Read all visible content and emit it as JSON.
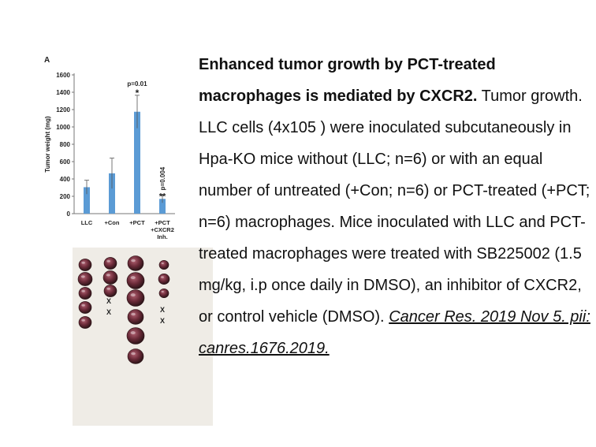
{
  "chart_data": {
    "type": "bar",
    "panel_label": "A",
    "ylabel": "Tumor weight (mg)",
    "ylim": [
      0,
      1600
    ],
    "yticks": [
      0,
      200,
      400,
      600,
      800,
      1000,
      1200,
      1400,
      1600
    ],
    "categories": [
      "LLC",
      "+Con",
      "+PCT",
      "+PCT +CXCR2 Inh."
    ],
    "category_lines": [
      [
        "LLC"
      ],
      [
        "+Con"
      ],
      [
        "+PCT"
      ],
      [
        "+PCT",
        "+CXCR2",
        "Inh."
      ]
    ],
    "values": [
      305,
      465,
      1175,
      170
    ],
    "errors": [
      80,
      175,
      190,
      45
    ],
    "annotations": [
      {
        "category_index": 2,
        "p_text": "p=0.01",
        "mark": "*"
      },
      {
        "category_index": 3,
        "p_text": "p=0.004",
        "mark": "**"
      }
    ],
    "bar_color": "#5b9bd5",
    "grid": false
  },
  "photo": {
    "marks": [
      "X",
      "X",
      "X",
      "X"
    ]
  },
  "caption": {
    "title": "Enhanced tumor growth by PCT-treated macrophages is mediated by CXCR2.",
    "body": "Tumor growth. LLC cells (4x105 ) were inoculated subcutaneously in Hpa-KO mice without (LLC; n=6) or with an equal number of untreated (+Con; n=6) or PCT-treated (+PCT; n=6) macrophages. Mice inoculated with LLC and PCT-treated macrophages were treated with SB225002 (1.5 mg/kg, i.p once daily in DMSO), an inhibitor of CXCR2, or control vehicle (DMSO).",
    "citation": "Cancer Res. 2019 Nov 5. pii: canres.1676.2019."
  }
}
